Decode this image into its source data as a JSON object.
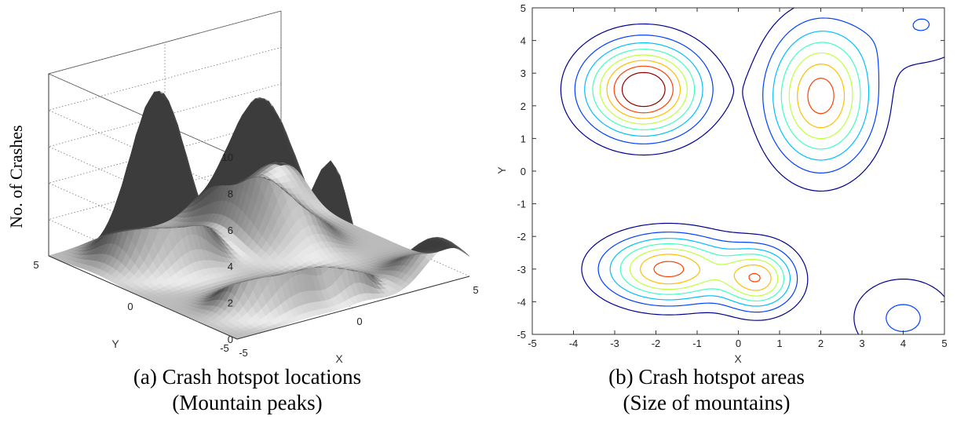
{
  "chart_data": [
    {
      "type": "surface",
      "panel": "a",
      "zlabel": "No. of Crashes",
      "xlabel": "X",
      "ylabel": "Y",
      "xlim": [
        -5,
        5
      ],
      "ylim": [
        -5,
        5
      ],
      "zlim": [
        0,
        10
      ],
      "z_ticks": [
        "0",
        "2",
        "4",
        "6",
        "8",
        "10"
      ],
      "x_ticks": [
        "-5",
        "0",
        "5"
      ],
      "y_ticks": [
        "5",
        "0",
        "-5"
      ],
      "grid": true,
      "color": "#9a9a9a",
      "peaks": [
        {
          "x": -2.3,
          "y": 2.5,
          "height": 9.3
        },
        {
          "x": 2.0,
          "y": 2.3,
          "height": 7.5
        },
        {
          "x": -1.7,
          "y": -3.0,
          "height": 7.4
        },
        {
          "x": 0.5,
          "y": -3.3,
          "height": 6.3
        },
        {
          "x": 4.5,
          "y": 4.5,
          "height": 2.0
        },
        {
          "x": 4.0,
          "y": -4.5,
          "height": 2.2
        }
      ],
      "caption_line1": "(a) Crash hotspot locations",
      "caption_line2": "(Mountain peaks)"
    },
    {
      "type": "contour",
      "panel": "b",
      "xlabel": "X",
      "ylabel": "Y",
      "xlim": [
        -5,
        5
      ],
      "ylim": [
        -5,
        5
      ],
      "x_ticks": [
        "-5",
        "-4",
        "-3",
        "-2",
        "-1",
        "0",
        "1",
        "2",
        "3",
        "4",
        "5"
      ],
      "y_ticks": [
        "5",
        "4",
        "3",
        "2",
        "1",
        "0",
        "-1",
        "-2",
        "-3",
        "-4",
        "-5"
      ],
      "grid": false,
      "peaks": [
        {
          "x": -2.3,
          "y": 2.5,
          "height": 9.3
        },
        {
          "x": 2.0,
          "y": 2.3,
          "height": 7.5
        },
        {
          "x": -1.7,
          "y": -3.0,
          "height": 7.4
        },
        {
          "x": 0.5,
          "y": -3.3,
          "height": 6.3
        },
        {
          "x": 4.5,
          "y": 4.5,
          "height": 2.0
        },
        {
          "x": 4.0,
          "y": -4.5,
          "height": 2.2
        }
      ],
      "levels": [
        1,
        2,
        3,
        4,
        5,
        6,
        7,
        8
      ],
      "colormap": [
        "#00008f",
        "#0040ff",
        "#00bfff",
        "#40ffbf",
        "#bfff40",
        "#ffbf00",
        "#ff4000",
        "#8f0000"
      ],
      "caption_line1": "(b) Crash hotspot areas",
      "caption_line2": "(Size of mountains)"
    }
  ]
}
